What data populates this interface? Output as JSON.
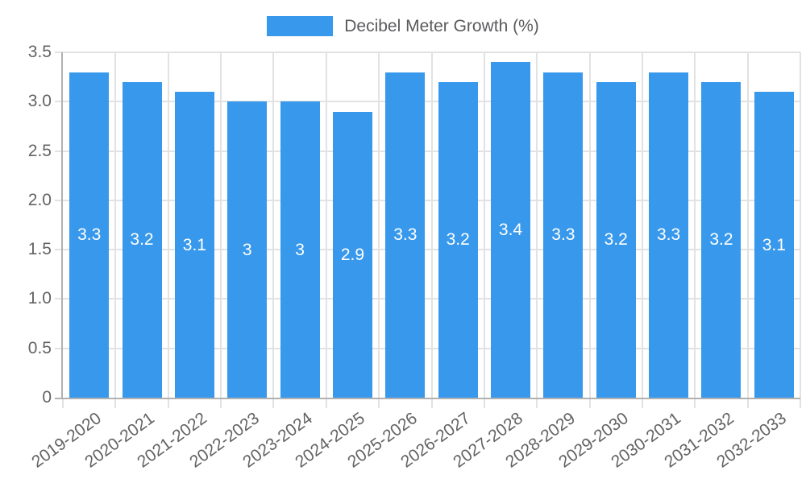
{
  "chart_data": {
    "type": "bar",
    "title": "",
    "legend": {
      "label": "Decibel Meter Growth (%)",
      "position": "top-center"
    },
    "categories": [
      "2019-2020",
      "2020-2021",
      "2021-2022",
      "2022-2023",
      "2023-2024",
      "2024-2025",
      "2025-2026",
      "2026-2027",
      "2027-2028",
      "2028-2029",
      "2029-2030",
      "2030-2031",
      "2031-2032",
      "2032-2033"
    ],
    "series": [
      {
        "name": "Decibel Meter Growth (%)",
        "values": [
          3.3,
          3.2,
          3.1,
          3,
          3,
          2.9,
          3.3,
          3.2,
          3.4,
          3.3,
          3.2,
          3.3,
          3.2,
          3.1
        ],
        "value_labels": [
          "3.3",
          "3.2",
          "3.1",
          "3",
          "3",
          "2.9",
          "3.3",
          "3.2",
          "3.4",
          "3.3",
          "3.2",
          "3.3",
          "3.2",
          "3.1"
        ]
      }
    ],
    "xlabel": "",
    "ylabel": "",
    "ylim": [
      0,
      3.5
    ],
    "yticks": [
      0,
      0.5,
      1,
      1.5,
      2,
      2.5,
      3,
      3.5
    ],
    "ytick_labels": [
      "0",
      "0.5",
      "1.0",
      "1.5",
      "2.0",
      "2.5",
      "3.0",
      "3.5"
    ],
    "grid": true,
    "value_labels_position": "center-of-bar",
    "colors": {
      "bar": "#3899ec",
      "grid": "#e2e2e2",
      "axis": "#b1b1b1",
      "tick_text": "#636363",
      "legend_text": "#5b5b5e",
      "value_label_text": "#ffffff",
      "background": "#ffffff"
    }
  }
}
